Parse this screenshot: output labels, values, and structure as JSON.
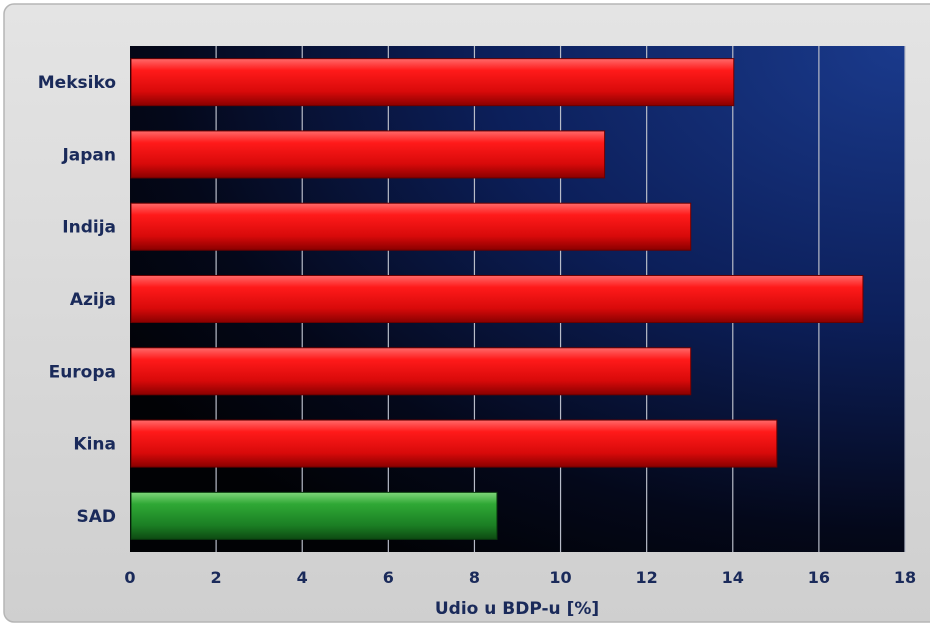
{
  "chart_data": {
    "type": "bar",
    "orientation": "horizontal",
    "categories": [
      "Meksiko",
      "Japan",
      "Indija",
      "Azija",
      "Europa",
      "Kina",
      "SAD"
    ],
    "values": [
      14,
      11,
      13,
      17,
      13,
      15,
      8.5
    ],
    "bar_colors": [
      "#e01010",
      "#e01010",
      "#e01010",
      "#e01010",
      "#e01010",
      "#e01010",
      "#1f8a2a"
    ],
    "title": "",
    "xlabel": "Udio u BDP-u [%]",
    "ylabel": "",
    "xlim": [
      0,
      18
    ],
    "xticks": [
      "0",
      "2",
      "4",
      "6",
      "8",
      "10",
      "12",
      "14",
      "16",
      "18"
    ],
    "grid": "vertical",
    "legend": "none",
    "colors": {
      "panel_background": "#d9d9d9",
      "plot_background_top": "#0f2a6e",
      "plot_background_bottom": "#020306",
      "label_text": "#1a2a5a",
      "gridline": "#b8bcc8"
    }
  }
}
